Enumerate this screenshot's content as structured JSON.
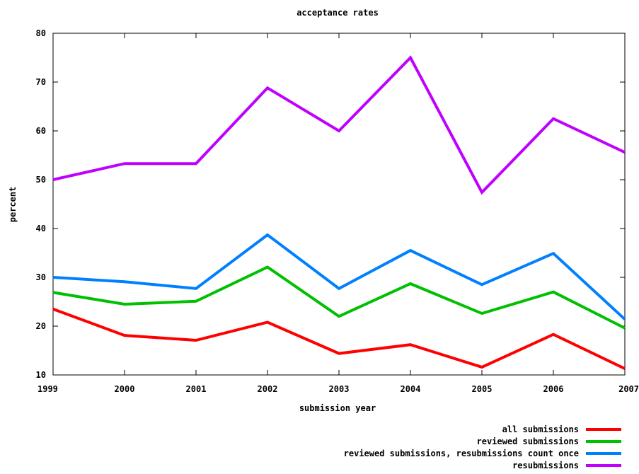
{
  "chart_data": {
    "type": "line",
    "title": "acceptance rates",
    "xlabel": "submission year",
    "ylabel": "percent",
    "x": [
      1999,
      2000,
      2001,
      2002,
      2003,
      2004,
      2005,
      2006,
      2007
    ],
    "xlim": [
      1999,
      2007
    ],
    "ylim": [
      10,
      80
    ],
    "yticks": [
      10,
      20,
      30,
      40,
      50,
      60,
      70,
      80
    ],
    "grid": false,
    "legend_position": "bottom-right",
    "series": [
      {
        "name": "all submissions",
        "color": "#ff0000",
        "values": [
          23.5,
          18.1,
          17.1,
          20.8,
          14.4,
          16.2,
          11.6,
          18.3,
          11.3
        ]
      },
      {
        "name": "reviewed submissions",
        "color": "#00c000",
        "values": [
          26.9,
          24.5,
          25.1,
          32.1,
          22.0,
          28.7,
          22.6,
          27.0,
          19.6
        ]
      },
      {
        "name": "reviewed submissions, resubmissions count once",
        "color": "#0080ff",
        "values": [
          30.0,
          29.1,
          27.7,
          38.7,
          27.7,
          35.5,
          28.5,
          34.9,
          21.4
        ]
      },
      {
        "name": "resubmissions",
        "color": "#c000ff",
        "values": [
          50.0,
          53.3,
          53.3,
          68.8,
          60.0,
          75.0,
          47.4,
          62.5,
          55.6
        ]
      }
    ]
  }
}
